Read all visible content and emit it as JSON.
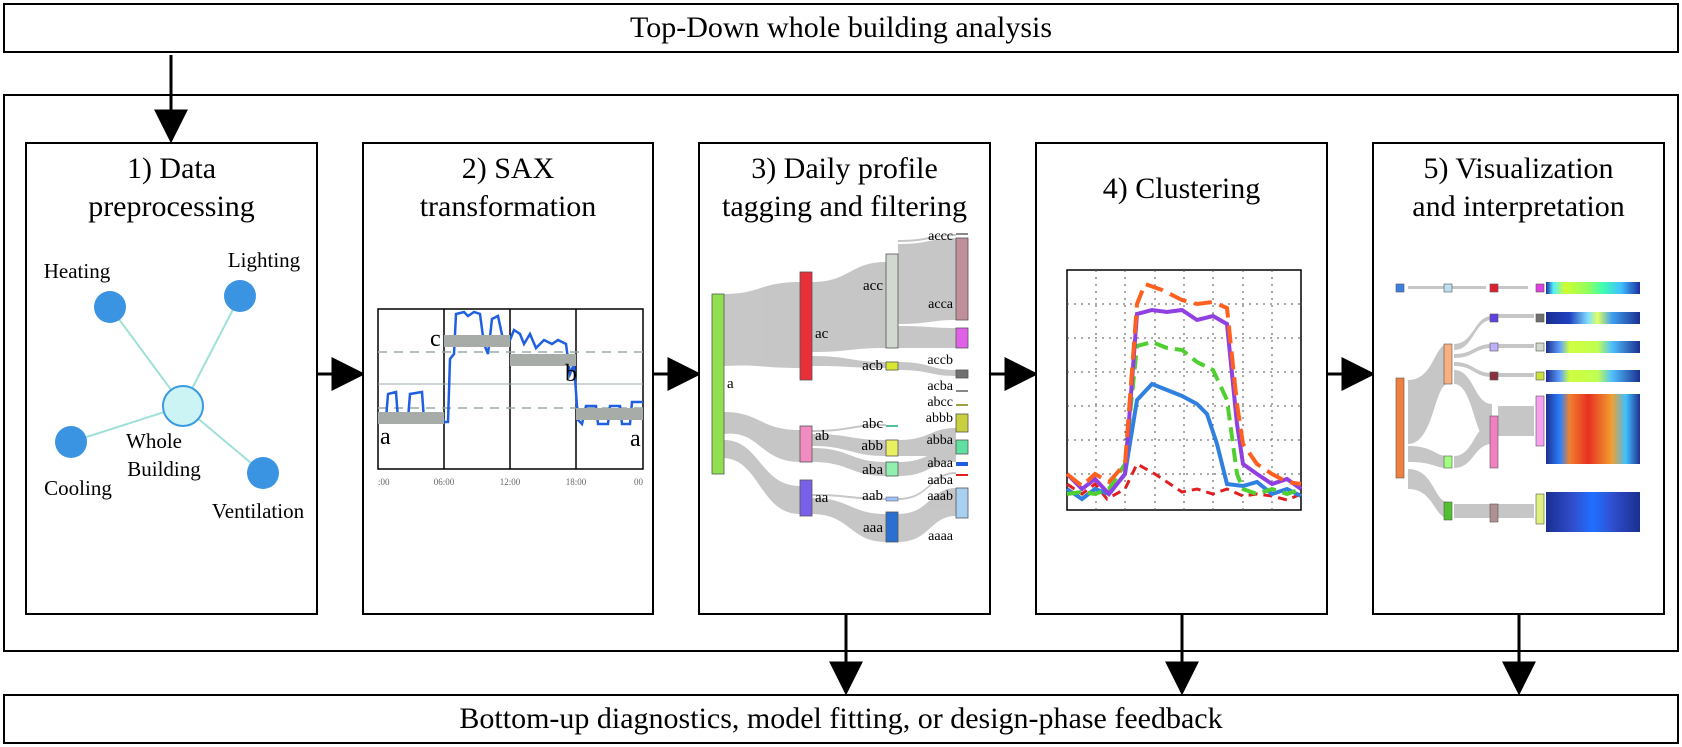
{
  "top_banner": "Top-Down whole building analysis",
  "bottom_banner": "Bottom-up diagnostics, model fitting, or design-phase feedback",
  "stages": [
    {
      "title_line1": "1) Data",
      "title_line2": "preprocessing"
    },
    {
      "title_line1": "2) SAX",
      "title_line2": "transformation"
    },
    {
      "title_line1": "3) Daily profile",
      "title_line2": "tagging and filtering"
    },
    {
      "title_line1": "4) Clustering",
      "title_line2": ""
    },
    {
      "title_line1": "5) Visualization",
      "title_line2": "and interpretation"
    }
  ],
  "preprocessing": {
    "center": {
      "line1": "Whole",
      "line2": "Building"
    },
    "nodes": [
      "Heating",
      "Lighting",
      "Cooling",
      "Ventilation"
    ]
  },
  "sax": {
    "symbols": [
      "a",
      "c",
      "b",
      "a"
    ],
    "ticks": [
      ":00",
      "06:00",
      "12:00",
      "18:00",
      "00"
    ]
  },
  "tagging": {
    "level1": [
      "a"
    ],
    "level2": [
      "ac",
      "ab",
      "aa"
    ],
    "level3": [
      "acc",
      "acb",
      "abc",
      "abb",
      "aba",
      "aab",
      "aaa"
    ],
    "level4": [
      "accc",
      "acca",
      "accb",
      "acba",
      "abcc",
      "abbb",
      "abba",
      "abaa",
      "aaba",
      "aaab",
      "aaaa"
    ],
    "colors": {
      "a": "#90e050",
      "ac": "#e8303a",
      "ab": "#f08cc0",
      "aa": "#7a60e8"
    }
  },
  "clustering": {
    "series_colors": [
      "#ff6020",
      "#9040e0",
      "#50d030",
      "#3080e0",
      "#e02020"
    ]
  }
}
